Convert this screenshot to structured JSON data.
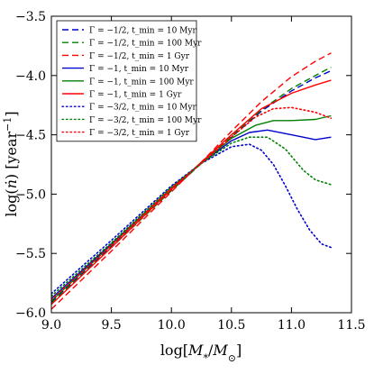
{
  "chart_data": {
    "type": "line",
    "xlabel": "log[M_*/M_⊙]",
    "ylabel": "log(ṅ) [year⁻¹]",
    "xlim": [
      9.0,
      11.5
    ],
    "ylim": [
      -6.0,
      -3.5
    ],
    "xticks": [
      "9.0",
      "9.5",
      "10.0",
      "10.5",
      "11.0",
      "11.5"
    ],
    "yticks": [
      "−6.0",
      "−5.5",
      "−5.0",
      "−4.5",
      "−4.0",
      "−3.5"
    ],
    "legend_position": "top-left",
    "grid": false,
    "series": [
      {
        "name": "Γ = −1/2, t_min = 10 Myr",
        "color": "#0000cc",
        "style": "dashed",
        "x": [
          9.0,
          9.5,
          10.0,
          10.25,
          10.5,
          10.75,
          11.0,
          11.2,
          11.33
        ],
        "y": [
          -5.91,
          -5.44,
          -4.97,
          -4.74,
          -4.52,
          -4.3,
          -4.13,
          -4.02,
          -3.96
        ]
      },
      {
        "name": "Γ = −1/2, t_min = 100 Myr",
        "color": "#008000",
        "style": "dashed",
        "x": [
          9.0,
          9.5,
          10.0,
          10.25,
          10.5,
          10.75,
          11.0,
          11.2,
          11.33
        ],
        "y": [
          -5.92,
          -5.45,
          -4.97,
          -4.74,
          -4.51,
          -4.29,
          -4.11,
          -4.0,
          -3.93
        ]
      },
      {
        "name": "Γ = −1/2, t_min = 1 Gyr",
        "color": "#ff0000",
        "style": "dashed",
        "x": [
          9.0,
          9.5,
          10.0,
          10.25,
          10.5,
          10.75,
          11.0,
          11.2,
          11.33
        ],
        "y": [
          -5.97,
          -5.48,
          -4.98,
          -4.73,
          -4.47,
          -4.22,
          -4.01,
          -3.88,
          -3.81
        ]
      },
      {
        "name": "Γ = −1, t_min = 10 Myr",
        "color": "#0000cc",
        "style": "solid",
        "x": [
          9.0,
          9.5,
          10.0,
          10.25,
          10.5,
          10.65,
          10.8,
          11.0,
          11.2,
          11.33
        ],
        "y": [
          -5.88,
          -5.42,
          -4.95,
          -4.74,
          -4.55,
          -4.48,
          -4.46,
          -4.5,
          -4.54,
          -4.52
        ]
      },
      {
        "name": "Γ = −1, t_min = 100 Myr",
        "color": "#008000",
        "style": "solid",
        "x": [
          9.0,
          9.5,
          10.0,
          10.25,
          10.5,
          10.7,
          10.85,
          11.0,
          11.2,
          11.33
        ],
        "y": [
          -5.9,
          -5.43,
          -4.95,
          -4.74,
          -4.53,
          -4.42,
          -4.38,
          -4.38,
          -4.37,
          -4.34
        ]
      },
      {
        "name": "Γ = −1, t_min = 1 Gyr",
        "color": "#ff0000",
        "style": "solid",
        "x": [
          9.0,
          9.5,
          10.0,
          10.25,
          10.5,
          10.75,
          11.0,
          11.2,
          11.33
        ],
        "y": [
          -5.93,
          -5.45,
          -4.96,
          -4.73,
          -4.5,
          -4.28,
          -4.15,
          -4.08,
          -4.04
        ]
      },
      {
        "name": "Γ = −3/2, t_min = 10 Myr",
        "color": "#0000cc",
        "style": "dotted",
        "x": [
          9.0,
          9.5,
          10.0,
          10.25,
          10.5,
          10.65,
          10.75,
          10.85,
          10.95,
          11.05,
          11.15,
          11.25,
          11.33
        ],
        "y": [
          -5.84,
          -5.39,
          -4.93,
          -4.74,
          -4.6,
          -4.58,
          -4.63,
          -4.75,
          -4.93,
          -5.13,
          -5.3,
          -5.42,
          -5.45
        ]
      },
      {
        "name": "Γ = −3/2, t_min = 100 Myr",
        "color": "#008000",
        "style": "dotted",
        "x": [
          9.0,
          9.5,
          10.0,
          10.25,
          10.5,
          10.65,
          10.8,
          10.95,
          11.1,
          11.2,
          11.33
        ],
        "y": [
          -5.86,
          -5.41,
          -4.94,
          -4.74,
          -4.57,
          -4.52,
          -4.52,
          -4.62,
          -4.8,
          -4.88,
          -4.92
        ]
      },
      {
        "name": "Γ = −3/2, t_min = 1 Gyr",
        "color": "#ff0000",
        "style": "dotted",
        "x": [
          9.0,
          9.5,
          10.0,
          10.25,
          10.5,
          10.7,
          10.85,
          11.0,
          11.2,
          11.33
        ],
        "y": [
          -5.89,
          -5.43,
          -4.95,
          -4.74,
          -4.52,
          -4.35,
          -4.28,
          -4.27,
          -4.31,
          -4.36
        ]
      }
    ]
  }
}
